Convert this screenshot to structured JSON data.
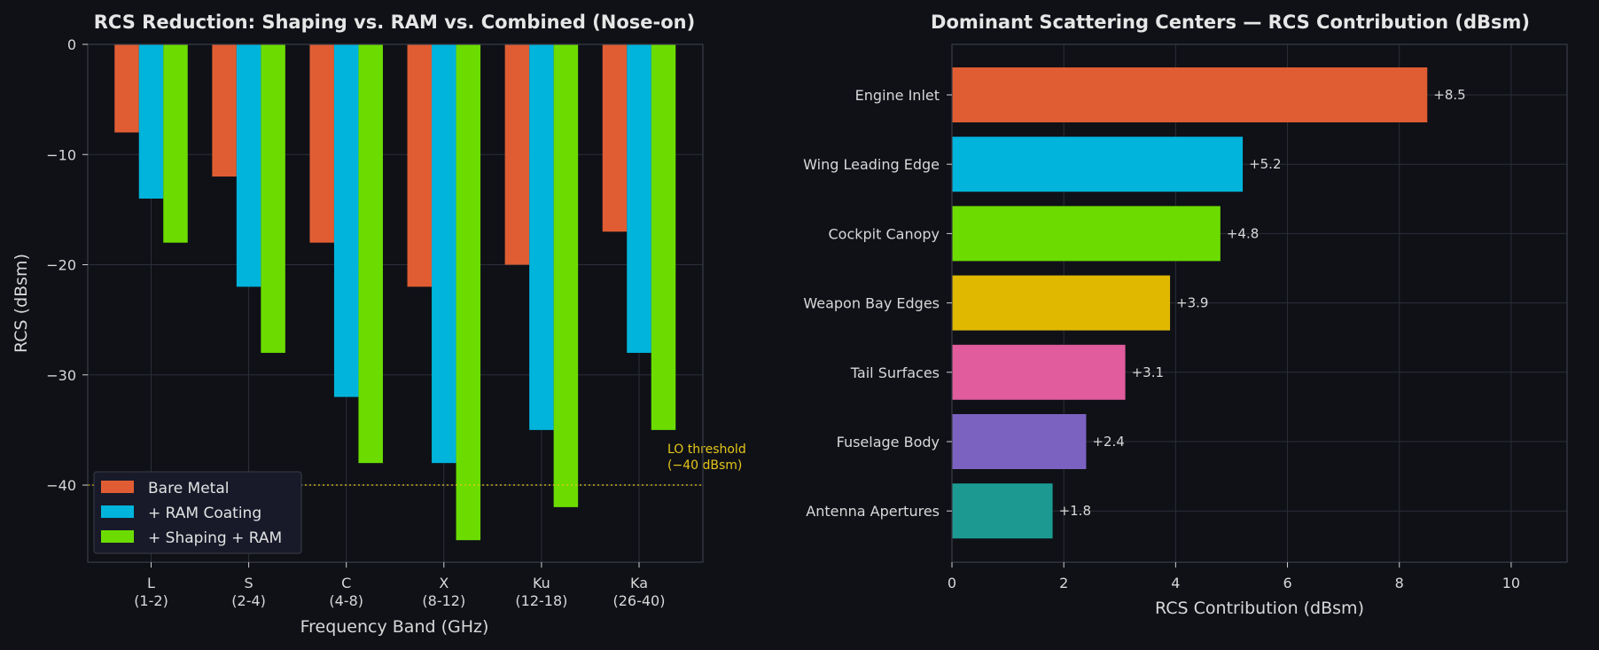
{
  "chart_data": [
    {
      "type": "bar",
      "title": "RCS Reduction: Shaping vs. RAM vs. Combined (Nose-on)",
      "xlabel": "Frequency Band (GHz)",
      "ylabel": "RCS (dBsm)",
      "categories": [
        "L\n(1-2)",
        "S\n(2-4)",
        "C\n(4-8)",
        "X\n(8-12)",
        "Ku\n(12-18)",
        "Ka\n(26-40)"
      ],
      "series": [
        {
          "name": "Bare Metal",
          "color": "#e05d33",
          "values": [
            -8,
            -12,
            -18,
            -22,
            -20,
            -17
          ]
        },
        {
          "name": "+ RAM Coating",
          "color": "#00b4dc",
          "values": [
            -14,
            -22,
            -32,
            -38,
            -35,
            -28
          ]
        },
        {
          "name": "+ Shaping + RAM",
          "color": "#6cdc00",
          "values": [
            -18,
            -28,
            -38,
            -45,
            -42,
            -35
          ]
        }
      ],
      "ylim": [
        -47,
        0
      ],
      "yticks": [
        0,
        -10,
        -20,
        -30,
        -40
      ],
      "threshold": {
        "value": -40,
        "label_line1": "LO threshold",
        "label_line2": "(−40 dBsm)",
        "color": "#e6c619"
      },
      "legend": "lower-left",
      "grid": true
    },
    {
      "type": "bar",
      "orientation": "horizontal",
      "title": "Dominant Scattering Centers — RCS Contribution (dBsm)",
      "xlabel": "RCS Contribution (dBsm)",
      "categories": [
        "Engine Inlet",
        "Wing Leading Edge",
        "Cockpit Canopy",
        "Weapon Bay Edges",
        "Tail Surfaces",
        "Fuselage Body",
        "Antenna Apertures"
      ],
      "values": [
        8.5,
        5.2,
        4.8,
        3.9,
        3.1,
        2.4,
        1.8
      ],
      "value_labels": [
        "+8.5",
        "+5.2",
        "+4.8",
        "+3.9",
        "+3.1",
        "+2.4",
        "+1.8"
      ],
      "colors": [
        "#e05d33",
        "#00b4dc",
        "#6cdc00",
        "#e0b800",
        "#e05c9c",
        "#7c62c0",
        "#1c9a92"
      ],
      "xlim": [
        0,
        11
      ],
      "xticks": [
        0,
        2,
        4,
        6,
        8,
        10
      ],
      "grid": true
    }
  ]
}
